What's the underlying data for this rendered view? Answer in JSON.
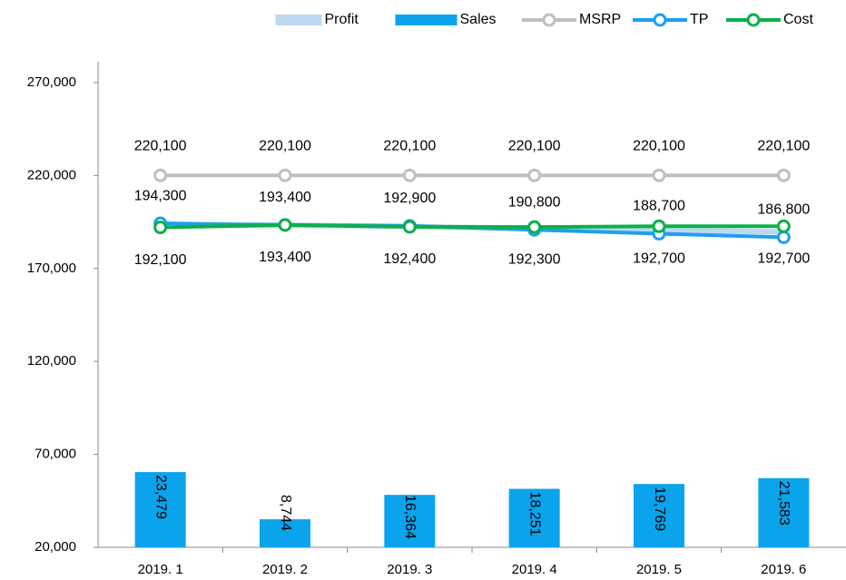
{
  "chart_data": {
    "type": "combo",
    "categories": [
      "2019. 1",
      "2019. 2",
      "2019. 3",
      "2019. 4",
      "2019. 5",
      "2019. 6"
    ],
    "ylim": [
      20000,
      270000
    ],
    "yticks": [
      {
        "value": 20000,
        "label": "20,000"
      },
      {
        "value": 70000,
        "label": "70,000"
      },
      {
        "value": 120000,
        "label": "120,000"
      },
      {
        "value": 170000,
        "label": "170,000"
      },
      {
        "value": 220000,
        "label": "220,000"
      },
      {
        "value": 270000,
        "label": "270,000"
      }
    ],
    "y2lim": [
      0,
      145000
    ],
    "grid": false,
    "legend": "top-right",
    "series": [
      {
        "name": "Profit",
        "type": "line",
        "marker": false,
        "color": "#bdd7ee",
        "values": [
          193000,
          193400,
          192600,
          191500,
          190700,
          189700
        ]
      },
      {
        "name": "Sales",
        "type": "bar",
        "axis": "y2",
        "color": "#0aa3ec",
        "values": [
          23479,
          8744,
          16364,
          18251,
          19769,
          21583
        ],
        "value_labels": [
          "23,479",
          "8,744",
          "16,364",
          "18,251",
          "19,769",
          "21,583"
        ]
      },
      {
        "name": "MSRP",
        "type": "line",
        "marker": true,
        "color": "#bfbfbf",
        "label_color": "#000000",
        "label_side": "above-far",
        "values": [
          220100,
          220100,
          220100,
          220100,
          220100,
          220100
        ],
        "value_labels": [
          "220,100",
          "220,100",
          "220,100",
          "220,100",
          "220,100",
          "220,100"
        ]
      },
      {
        "name": "TP",
        "type": "line",
        "marker": true,
        "color": "#1e9ff0",
        "label_color": "#5b8fd0",
        "label_side": "above",
        "values": [
          194300,
          193400,
          192900,
          190800,
          188700,
          186800
        ],
        "value_labels": [
          "194,300",
          "193,400",
          "192,900",
          "190,800",
          "188,700",
          "186,800"
        ]
      },
      {
        "name": "Cost",
        "type": "line",
        "marker": true,
        "color": "#0cb04a",
        "label_color": "#0cb04a",
        "label_side": "below",
        "values": [
          192100,
          193400,
          192400,
          192300,
          192700,
          192700
        ],
        "value_labels": [
          "192,100",
          "193,400",
          "192,400",
          "192,300",
          "192,700",
          "192,700"
        ]
      }
    ]
  }
}
